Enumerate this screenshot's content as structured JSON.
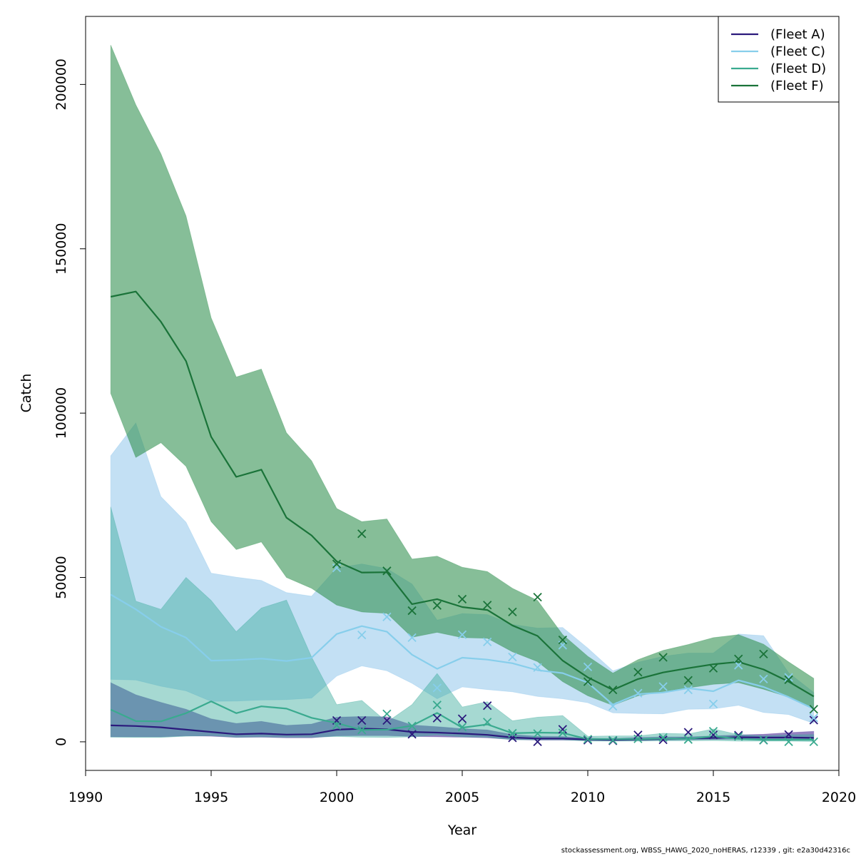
{
  "chart_data": {
    "type": "line",
    "xlabel": "Year",
    "ylabel": "Catch",
    "xlim": [
      1990,
      2020
    ],
    "ylim": [
      -8700,
      220700
    ],
    "xticks": [
      1990,
      1995,
      2000,
      2005,
      2010,
      2015,
      2020
    ],
    "yticks": [
      0,
      50000,
      100000,
      150000,
      200000
    ],
    "legend_position": "top-right",
    "grid": false,
    "x": [
      1991,
      1992,
      1993,
      1994,
      1995,
      1996,
      1997,
      1998,
      1999,
      2000,
      2001,
      2002,
      2003,
      2004,
      2005,
      2006,
      2007,
      2008,
      2009,
      2010,
      2011,
      2012,
      2013,
      2014,
      2015,
      2016,
      2017,
      2018,
      2019
    ],
    "series": [
      {
        "name": "(Fleet A)",
        "color": "#2b1a7c",
        "band_color": "#5b3fa0",
        "band_opacity": 0.65,
        "values": [
          5000,
          4800,
          4400,
          3700,
          3000,
          2300,
          2500,
          2200,
          2300,
          3700,
          4000,
          3800,
          3000,
          2800,
          2500,
          2100,
          1300,
          1000,
          1000,
          700,
          600,
          700,
          900,
          1000,
          1200,
          1400,
          1300,
          1300,
          1200
        ],
        "lower": [
          1500,
          1500,
          1500,
          1800,
          1700,
          1300,
          1400,
          1200,
          1200,
          1800,
          1900,
          1900,
          1600,
          1500,
          1400,
          1200,
          700,
          500,
          500,
          400,
          300,
          400,
          500,
          600,
          700,
          800,
          700,
          600,
          600
        ],
        "upper": [
          18000,
          14300,
          12000,
          9900,
          7000,
          5600,
          6200,
          5000,
          5400,
          7500,
          7700,
          7600,
          5100,
          4600,
          4000,
          3600,
          2200,
          1700,
          1600,
          1100,
          1000,
          1300,
          1500,
          1500,
          1800,
          2100,
          2300,
          2800,
          3200
        ],
        "observed": [
          null,
          null,
          null,
          null,
          null,
          null,
          null,
          null,
          null,
          6500,
          6500,
          6500,
          2300,
          7200,
          7000,
          11000,
          1200,
          0,
          3800,
          500,
          300,
          2100,
          600,
          2900,
          2100,
          2000,
          500,
          2200,
          6600
        ]
      },
      {
        "name": "(Fleet C)",
        "color": "#87ceeb",
        "band_color": "#87c2ea",
        "band_opacity": 0.5,
        "values": [
          44800,
          40300,
          35000,
          31700,
          24700,
          24900,
          25300,
          24600,
          25600,
          32800,
          35200,
          33500,
          26500,
          22200,
          25600,
          25000,
          23900,
          21800,
          20900,
          18000,
          11300,
          14500,
          15000,
          16300,
          15400,
          18700,
          16700,
          13600,
          10000
        ],
        "lower": [
          19000,
          18800,
          16900,
          15500,
          12300,
          12400,
          12700,
          12800,
          13300,
          20000,
          23100,
          21600,
          17800,
          13100,
          16700,
          15900,
          15200,
          13800,
          13100,
          11900,
          8800,
          8600,
          8500,
          9900,
          10000,
          11100,
          8900,
          8300,
          5600
        ],
        "upper": [
          87000,
          97000,
          74600,
          66800,
          51300,
          50100,
          49100,
          45400,
          44300,
          52900,
          54100,
          52700,
          48000,
          37000,
          39000,
          38700,
          35700,
          34600,
          34800,
          28500,
          21600,
          24200,
          26000,
          27000,
          27000,
          32800,
          32300,
          21000,
          15000
        ],
        "observed": [
          null,
          null,
          null,
          null,
          null,
          null,
          null,
          null,
          null,
          52900,
          32500,
          38000,
          31700,
          16400,
          32600,
          30400,
          25800,
          22600,
          29400,
          22800,
          10800,
          14800,
          16800,
          15800,
          11500,
          23300,
          19100,
          19600,
          7300
        ]
      },
      {
        "name": "(Fleet D)",
        "color": "#3aaa8f",
        "band_color": "#3aaa9b",
        "band_opacity": 0.45,
        "values": [
          9800,
          6300,
          6200,
          8700,
          12300,
          8700,
          10800,
          10100,
          7300,
          5700,
          3600,
          3700,
          4900,
          8800,
          4300,
          5300,
          2600,
          2800,
          2700,
          800,
          800,
          800,
          1000,
          900,
          1700,
          900,
          600,
          600,
          600
        ],
        "lower": [
          1400,
          1300,
          1300,
          1700,
          1900,
          1400,
          1500,
          1400,
          1400,
          1600,
          1400,
          1300,
          1500,
          2100,
          1500,
          1400,
          600,
          600,
          600,
          200,
          200,
          200,
          300,
          300,
          400,
          200,
          200,
          200,
          100
        ],
        "upper": [
          71500,
          42800,
          40300,
          50000,
          43000,
          33500,
          40700,
          43100,
          25800,
          11300,
          12600,
          6000,
          11300,
          20800,
          10600,
          12200,
          6400,
          7500,
          8000,
          1700,
          1800,
          1800,
          2600,
          2400,
          3900,
          2200,
          1800,
          2100,
          2200
        ],
        "observed": [
          null,
          null,
          null,
          null,
          null,
          null,
          null,
          null,
          null,
          5000,
          3600,
          8500,
          4800,
          11200,
          4500,
          6000,
          2600,
          2500,
          2700,
          800,
          500,
          900,
          1300,
          700,
          3200,
          1600,
          500,
          0,
          0
        ]
      },
      {
        "name": "(Fleet F)",
        "color": "#1a7339",
        "band_color": "#2e8f4d",
        "band_opacity": 0.58,
        "values": [
          135400,
          137000,
          127800,
          115800,
          92800,
          80600,
          82800,
          68200,
          62800,
          54900,
          51500,
          51600,
          41900,
          43400,
          41000,
          40100,
          35400,
          32200,
          24700,
          19600,
          15800,
          19100,
          21100,
          22400,
          23600,
          24300,
          22000,
          18300,
          13800
        ],
        "lower": [
          106000,
          86500,
          91000,
          83800,
          67000,
          58500,
          60800,
          50000,
          46700,
          41600,
          39500,
          39100,
          31800,
          33300,
          31700,
          31500,
          27400,
          24400,
          18300,
          14000,
          11100,
          14000,
          15300,
          16400,
          17500,
          18000,
          16000,
          13600,
          10000
        ],
        "upper": [
          212000,
          193800,
          178900,
          160000,
          129000,
          111000,
          113400,
          94000,
          85500,
          71000,
          67000,
          67800,
          55600,
          56500,
          53100,
          51800,
          46700,
          43000,
          32600,
          26000,
          20900,
          25000,
          27800,
          29600,
          31700,
          32600,
          29700,
          24300,
          19300
        ],
        "observed": [
          null,
          null,
          null,
          null,
          null,
          null,
          null,
          null,
          null,
          54100,
          63300,
          52000,
          39900,
          41500,
          43400,
          41600,
          39500,
          44000,
          31000,
          18300,
          15800,
          21200,
          25700,
          18700,
          22400,
          25200,
          26700,
          18900,
          9900
        ]
      }
    ]
  },
  "footer": "stockassessment.org, WBSS_HAWG_2020_noHERAS, r12339 , git: e2a30d42316c"
}
